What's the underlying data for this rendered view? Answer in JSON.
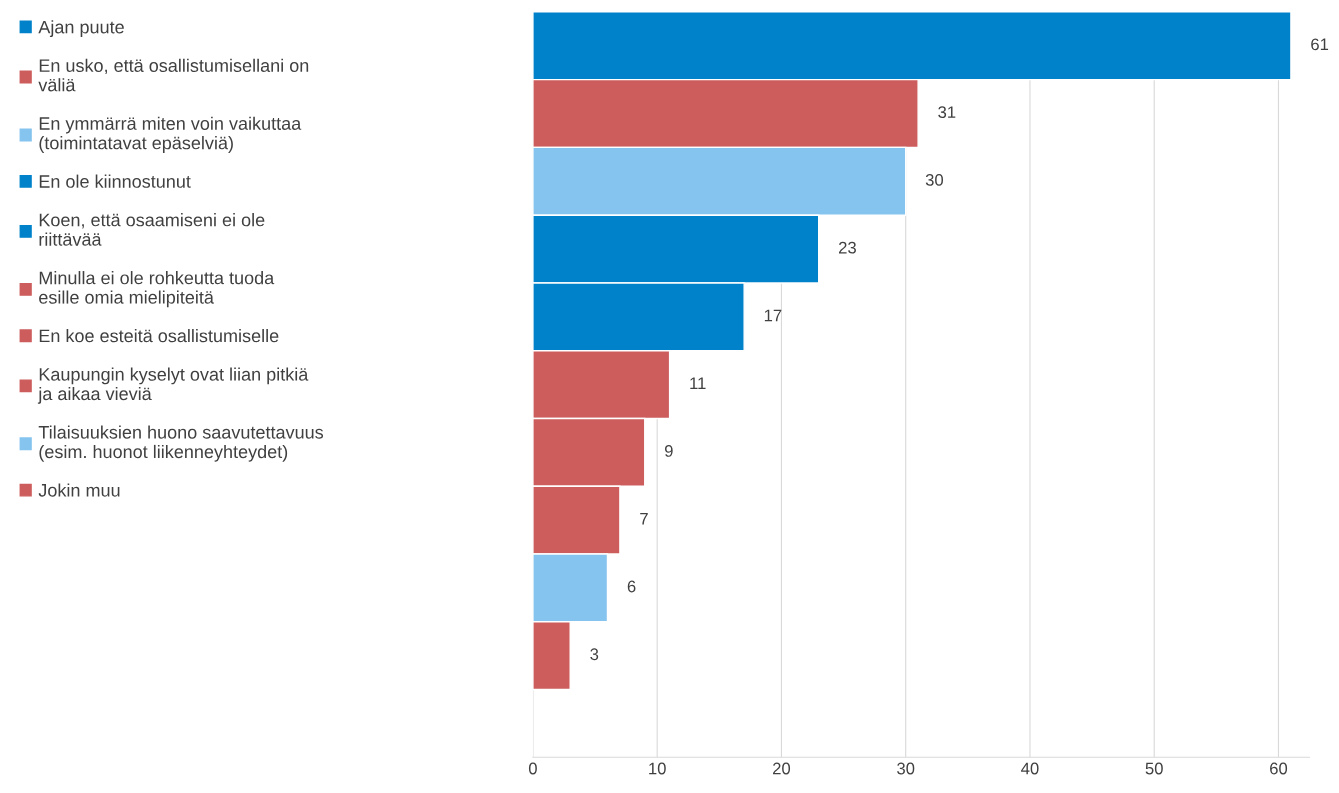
{
  "chart_data": {
    "type": "bar",
    "orientation": "horizontal",
    "stacked": true,
    "categories": [
      null,
      null,
      null,
      null,
      null,
      null,
      null,
      null,
      null,
      null
    ],
    "series": [
      {
        "name": "Ajan puute",
        "color": "#0082ca",
        "values": [
          61,
          null,
          null,
          null,
          null,
          null,
          null,
          null,
          null,
          null
        ]
      },
      {
        "name": "En usko, että osallistumisellani on väliä",
        "color": "#cd5c5c",
        "values": [
          null,
          31,
          null,
          null,
          null,
          null,
          null,
          null,
          null,
          null
        ]
      },
      {
        "name": "En ymmärrä miten voin vaikuttaa (toimintatavat epäselviä)",
        "color": "#85c4ef",
        "values": [
          null,
          null,
          30,
          null,
          null,
          null,
          null,
          null,
          null,
          null
        ]
      },
      {
        "name": "En ole kiinnostunut",
        "color": "#0082ca",
        "values": [
          null,
          null,
          null,
          23,
          null,
          null,
          null,
          null,
          null,
          null
        ]
      },
      {
        "name": "Koen, että osaamiseni ei ole riittävää",
        "color": "#0082ca",
        "values": [
          null,
          null,
          null,
          null,
          17,
          null,
          null,
          null,
          null,
          null
        ]
      },
      {
        "name": "Minulla ei ole rohkeutta tuoda esille omia mielipiteitä",
        "color": "#cd5c5c",
        "values": [
          null,
          null,
          null,
          null,
          null,
          11,
          null,
          null,
          null,
          null
        ]
      },
      {
        "name": "En koe esteitä osallistumiselle",
        "color": "#cd5c5c",
        "values": [
          null,
          null,
          null,
          null,
          null,
          null,
          9,
          null,
          null,
          null
        ]
      },
      {
        "name": "Kaupungin kyselyt ovat liian pitkiä ja aikaa vieviä",
        "color": "#cd5c5c",
        "values": [
          null,
          null,
          null,
          null,
          null,
          null,
          null,
          7,
          null,
          null
        ]
      },
      {
        "name": "Tilaisuuksien huono saavutettavuus (esim. huonot liikenneyhteydet)",
        "color": "#85c4ef",
        "values": [
          null,
          null,
          null,
          null,
          null,
          null,
          null,
          null,
          6,
          null
        ]
      },
      {
        "name": "Jokin muu",
        "color": "#cd5c5c",
        "values": [
          null,
          null,
          null,
          null,
          null,
          null,
          null,
          null,
          null,
          3
        ]
      }
    ],
    "xlim": [
      0,
      62.5
    ],
    "xticks": [
      0,
      10,
      20,
      30,
      40,
      50,
      60
    ],
    "grid": "x",
    "legend": "left",
    "tick_labels": "x",
    "data_labels": true
  }
}
